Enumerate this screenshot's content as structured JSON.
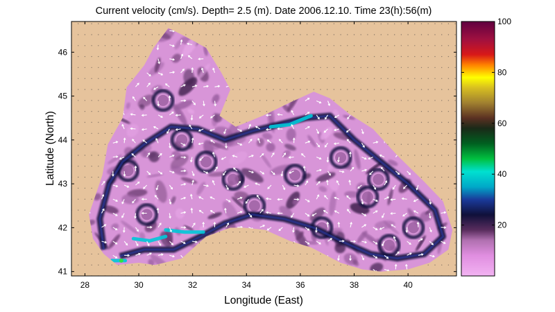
{
  "chart_data": {
    "type": "heatmap",
    "title": "Current velocity (cm/s). Depth=  2.5 (m). Date 2006.12.10. Time 23(h):56(m)",
    "xlabel": "Longitude (East)",
    "ylabel": "Latitude (North)",
    "xlim": [
      27.5,
      41.8
    ],
    "ylim": [
      40.9,
      46.7
    ],
    "xticks": [
      "28",
      "30",
      "32",
      "34",
      "36",
      "38",
      "40"
    ],
    "yticks": [
      "41",
      "42",
      "43",
      "44",
      "45",
      "46"
    ],
    "grid": true,
    "colorbar": {
      "range": [
        0,
        100
      ],
      "ticks": [
        "20",
        "40",
        "60",
        "80",
        "100"
      ]
    },
    "colors": {
      "land": "#e6c39c",
      "sea_low": "#e6a6e6",
      "sea_mid": "#9a5ea0",
      "current_fast": "#10103a",
      "jet": "#00c8d8",
      "arrow": "#ffffff"
    },
    "coastline": [
      [
        28.15,
        42.3
      ],
      [
        28.65,
        43.2
      ],
      [
        28.85,
        43.9
      ],
      [
        29.4,
        44.5
      ],
      [
        29.55,
        45.2
      ],
      [
        30.2,
        45.7
      ],
      [
        30.55,
        46.1
      ],
      [
        31.1,
        46.55
      ],
      [
        31.6,
        46.4
      ],
      [
        32.5,
        46.1
      ],
      [
        33.05,
        45.55
      ],
      [
        33.4,
        45.15
      ],
      [
        33.0,
        44.55
      ],
      [
        33.6,
        44.3
      ],
      [
        34.6,
        44.55
      ],
      [
        35.6,
        44.85
      ],
      [
        36.5,
        45.1
      ],
      [
        37.1,
        44.95
      ],
      [
        37.8,
        44.6
      ],
      [
        38.7,
        44.25
      ],
      [
        39.6,
        43.65
      ],
      [
        40.6,
        43.05
      ],
      [
        41.3,
        42.6
      ],
      [
        41.65,
        41.95
      ],
      [
        41.5,
        41.5
      ],
      [
        40.8,
        41.2
      ],
      [
        40.0,
        41.05
      ],
      [
        39.0,
        41.0
      ],
      [
        38.3,
        41.05
      ],
      [
        37.5,
        41.2
      ],
      [
        36.4,
        41.55
      ],
      [
        35.6,
        41.7
      ],
      [
        34.7,
        41.95
      ],
      [
        33.9,
        42.0
      ],
      [
        33.4,
        42.0
      ],
      [
        32.5,
        41.8
      ],
      [
        31.6,
        41.3
      ],
      [
        30.6,
        41.15
      ],
      [
        30.0,
        41.2
      ],
      [
        29.2,
        41.15
      ],
      [
        28.7,
        41.4
      ],
      [
        28.3,
        41.75
      ],
      [
        28.15,
        42.3
      ]
    ],
    "eddies": [
      [
        31.6,
        44.0
      ],
      [
        30.3,
        42.3
      ],
      [
        35.8,
        43.2
      ],
      [
        38.5,
        42.7
      ],
      [
        40.2,
        42.0
      ],
      [
        32.5,
        43.5
      ],
      [
        34.3,
        42.5
      ],
      [
        36.8,
        42.0
      ],
      [
        39.3,
        41.6
      ],
      [
        30.9,
        44.9
      ],
      [
        33.5,
        43.1
      ],
      [
        37.5,
        43.6
      ],
      [
        29.6,
        43.3
      ],
      [
        38.9,
        43.1
      ]
    ],
    "rim_current": [
      [
        28.7,
        41.5
      ],
      [
        28.55,
        42.2
      ],
      [
        28.9,
        43.0
      ],
      [
        29.4,
        43.5
      ],
      [
        30.2,
        43.9
      ],
      [
        31.2,
        44.3
      ],
      [
        32.2,
        44.25
      ],
      [
        33.2,
        44.0
      ],
      [
        34.2,
        44.2
      ],
      [
        35.2,
        44.35
      ],
      [
        36.2,
        44.5
      ],
      [
        37.1,
        44.55
      ],
      [
        38.0,
        44.0
      ],
      [
        39.0,
        43.5
      ],
      [
        40.0,
        43.0
      ],
      [
        41.0,
        42.4
      ],
      [
        41.3,
        41.8
      ],
      [
        40.6,
        41.4
      ],
      [
        39.6,
        41.3
      ],
      [
        38.6,
        41.4
      ],
      [
        37.5,
        41.7
      ],
      [
        36.5,
        42.0
      ],
      [
        35.4,
        42.2
      ],
      [
        34.2,
        42.3
      ],
      [
        33.2,
        42.1
      ],
      [
        32.3,
        41.8
      ],
      [
        31.3,
        41.5
      ],
      [
        30.2,
        41.5
      ],
      [
        29.3,
        41.35
      ]
    ],
    "jets": [
      [
        [
          29.8,
          41.75
        ],
        [
          30.4,
          41.7
        ],
        [
          31.0,
          41.8
        ]
      ],
      [
        [
          31.0,
          41.95
        ],
        [
          31.7,
          41.9
        ],
        [
          32.4,
          41.9
        ]
      ],
      [
        [
          34.9,
          44.3
        ],
        [
          35.6,
          44.35
        ],
        [
          36.4,
          44.55
        ]
      ],
      [
        [
          29.0,
          41.25
        ],
        [
          29.5,
          41.25
        ]
      ]
    ]
  }
}
